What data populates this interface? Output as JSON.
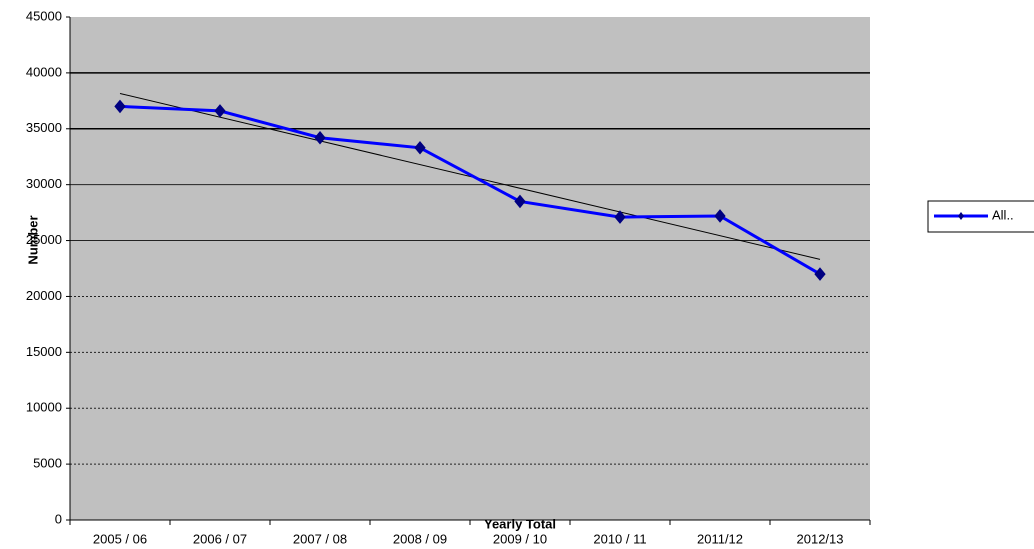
{
  "chart_data": {
    "type": "line",
    "x_label": "Yearly Total",
    "y_label": "Number",
    "categories": [
      "2005 / 06",
      "2006 / 07",
      "2007 / 08",
      "2008 / 09",
      "2009 / 10",
      "2010 / 11",
      "2011/12",
      "2012/13"
    ],
    "series": [
      {
        "name": "All..",
        "color": "#0000ff",
        "values": [
          37000,
          36600,
          34200,
          33300,
          28500,
          27100,
          27200,
          22000
        ]
      }
    ],
    "trendline": true,
    "ylim": [
      0,
      45000
    ],
    "yticks": [
      0,
      5000,
      10000,
      15000,
      20000,
      25000,
      30000,
      35000,
      40000,
      45000
    ],
    "grid": true,
    "legend": "right"
  }
}
